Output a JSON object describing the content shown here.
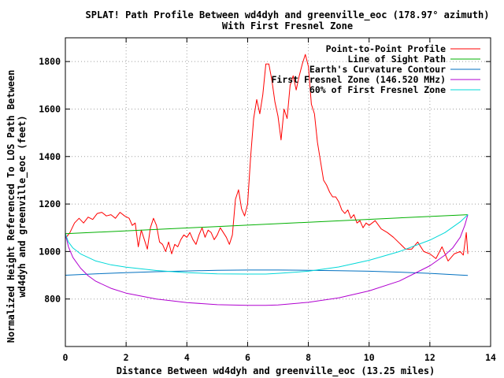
{
  "chart_data": {
    "type": "line",
    "title": "SPLAT! Path Profile Between wd4dyh and greenville_eoc (178.97° azimuth)",
    "subtitle": "With First Fresnel Zone",
    "xlabel": "Distance Between wd4dyh and greenville_eoc (13.25 miles)",
    "ylabel_line1": "Normalized Height Referenced To LOS Path Between",
    "ylabel_line2": "wd4dyh and greenville_eoc (feet)",
    "xlim": [
      0,
      14
    ],
    "ylim": [
      600,
      1900
    ],
    "x_ticks": [
      "0",
      "2",
      "4",
      "6",
      "8",
      "10",
      "12",
      "14"
    ],
    "y_ticks": [
      "800",
      "1000",
      "1200",
      "1400",
      "1600",
      "1800"
    ],
    "x_tick_values": [
      0,
      2,
      4,
      6,
      8,
      10,
      12,
      14
    ],
    "y_tick_values": [
      800,
      1000,
      1200,
      1400,
      1600,
      1800
    ],
    "grid": true,
    "legend_position": "top-right",
    "series": [
      {
        "name": "Point-to-Point Profile",
        "color": "#ff0000",
        "x": [
          0,
          0.15,
          0.3,
          0.45,
          0.6,
          0.75,
          0.9,
          1.05,
          1.2,
          1.35,
          1.5,
          1.65,
          1.8,
          1.95,
          2.1,
          2.2,
          2.3,
          2.4,
          2.5,
          2.6,
          2.7,
          2.8,
          2.9,
          3.0,
          3.1,
          3.2,
          3.3,
          3.4,
          3.5,
          3.6,
          3.7,
          3.8,
          3.9,
          4.0,
          4.1,
          4.2,
          4.3,
          4.4,
          4.5,
          4.6,
          4.7,
          4.8,
          4.9,
          5.0,
          5.1,
          5.2,
          5.3,
          5.4,
          5.5,
          5.6,
          5.7,
          5.8,
          5.9,
          6.0,
          6.1,
          6.2,
          6.3,
          6.4,
          6.5,
          6.6,
          6.7,
          6.8,
          6.9,
          7.0,
          7.1,
          7.2,
          7.3,
          7.4,
          7.5,
          7.6,
          7.7,
          7.8,
          7.9,
          8.0,
          8.1,
          8.2,
          8.3,
          8.4,
          8.5,
          8.6,
          8.7,
          8.8,
          8.9,
          9.0,
          9.1,
          9.2,
          9.3,
          9.4,
          9.5,
          9.6,
          9.7,
          9.8,
          9.9,
          10.0,
          10.2,
          10.4,
          10.6,
          10.8,
          11.0,
          11.2,
          11.4,
          11.6,
          11.8,
          12.0,
          12.2,
          12.4,
          12.6,
          12.8,
          13.0,
          13.1,
          13.2,
          13.25
        ],
        "y": [
          1055,
          1080,
          1120,
          1140,
          1120,
          1145,
          1135,
          1160,
          1165,
          1150,
          1155,
          1140,
          1165,
          1150,
          1140,
          1110,
          1120,
          1020,
          1090,
          1050,
          1010,
          1100,
          1140,
          1110,
          1040,
          1030,
          1000,
          1040,
          990,
          1030,
          1020,
          1050,
          1070,
          1060,
          1080,
          1050,
          1030,
          1070,
          1100,
          1060,
          1090,
          1080,
          1050,
          1070,
          1100,
          1080,
          1060,
          1030,
          1070,
          1220,
          1260,
          1180,
          1150,
          1200,
          1400,
          1560,
          1640,
          1580,
          1660,
          1790,
          1790,
          1720,
          1630,
          1570,
          1470,
          1600,
          1560,
          1700,
          1740,
          1680,
          1740,
          1790,
          1830,
          1780,
          1620,
          1580,
          1460,
          1380,
          1300,
          1280,
          1250,
          1230,
          1230,
          1210,
          1175,
          1160,
          1175,
          1140,
          1155,
          1120,
          1130,
          1100,
          1120,
          1110,
          1130,
          1095,
          1080,
          1060,
          1035,
          1010,
          1010,
          1040,
          1000,
          990,
          970,
          1020,
          960,
          990,
          1000,
          985,
          1080,
          990
        ],
        "points_x": [
          0,
          0.15,
          0.3,
          0.45,
          0.6,
          0.75,
          0.9,
          1.05,
          1.2,
          1.35,
          1.5,
          1.65,
          1.8,
          1.95,
          2.1,
          2.2,
          2.3,
          2.4,
          2.5,
          2.6,
          2.7,
          2.8,
          2.9,
          3.0,
          3.1,
          3.2,
          3.3,
          3.4,
          3.5,
          3.6,
          3.7,
          3.8,
          3.9,
          4.0,
          4.1,
          4.2,
          4.3,
          4.4,
          4.5,
          4.6,
          4.7,
          4.8,
          4.9,
          5.0,
          5.1,
          5.2,
          5.3,
          5.4,
          5.5,
          5.6,
          5.7,
          5.8,
          5.9,
          6.0,
          6.1,
          6.2,
          6.3,
          6.4,
          6.5,
          6.6,
          6.7,
          6.8,
          6.9,
          7.0,
          7.1,
          7.2,
          7.3,
          7.4,
          7.5,
          7.6,
          7.7,
          7.8,
          7.9,
          8.0,
          8.1,
          8.2,
          8.3,
          8.4,
          8.5,
          8.6,
          8.7,
          8.8,
          8.9,
          9.0,
          9.1,
          9.2,
          9.3,
          9.4,
          9.5,
          9.6,
          9.7,
          9.8,
          9.9,
          10.0,
          10.2,
          10.4,
          10.6,
          10.8,
          11.0,
          11.2,
          11.4,
          11.6,
          11.8,
          12.0,
          12.2,
          12.4,
          12.6,
          12.8,
          13.0,
          13.1,
          13.2,
          13.25
        ]
      },
      {
        "name": "Line of Sight Path",
        "color": "#00b000",
        "x": [
          0,
          13.25
        ],
        "y": [
          1075,
          1155
        ]
      },
      {
        "name": "Earth's Curvature Contour",
        "color": "#0070c0",
        "x": [
          0,
          1,
          2,
          3,
          4,
          5,
          6,
          6.6,
          7,
          8,
          9,
          10,
          11,
          12,
          13,
          13.25
        ],
        "y": [
          900,
          906,
          911,
          915,
          918,
          921,
          922,
          922,
          922,
          921,
          919,
          917,
          913,
          908,
          901,
          899
        ]
      },
      {
        "name": "First Fresnel Zone (146.520 MHz)",
        "color": "#b000d0",
        "x": [
          0,
          0.1,
          0.25,
          0.5,
          0.75,
          1,
          1.5,
          2,
          3,
          4,
          5,
          6,
          6.6,
          7,
          8,
          9,
          10,
          11,
          12,
          12.5,
          12.75,
          13,
          13.15,
          13.25
        ],
        "y": [
          1075,
          1020,
          975,
          930,
          898,
          875,
          845,
          825,
          800,
          785,
          776,
          773,
          773,
          775,
          786,
          805,
          834,
          876,
          940,
          985,
          1015,
          1060,
          1110,
          1155
        ]
      },
      {
        "name": "60% of First Fresnel Zone",
        "color": "#00d8d8",
        "x": [
          0,
          0.1,
          0.25,
          0.5,
          1,
          1.5,
          2,
          3,
          4,
          5,
          6,
          6.6,
          7,
          8,
          9,
          10,
          11,
          12,
          12.5,
          13,
          13.25
        ],
        "y": [
          1075,
          1040,
          1015,
          990,
          960,
          944,
          934,
          920,
          911,
          906,
          905,
          905,
          908,
          917,
          935,
          963,
          1000,
          1048,
          1080,
          1125,
          1155
        ]
      }
    ]
  }
}
